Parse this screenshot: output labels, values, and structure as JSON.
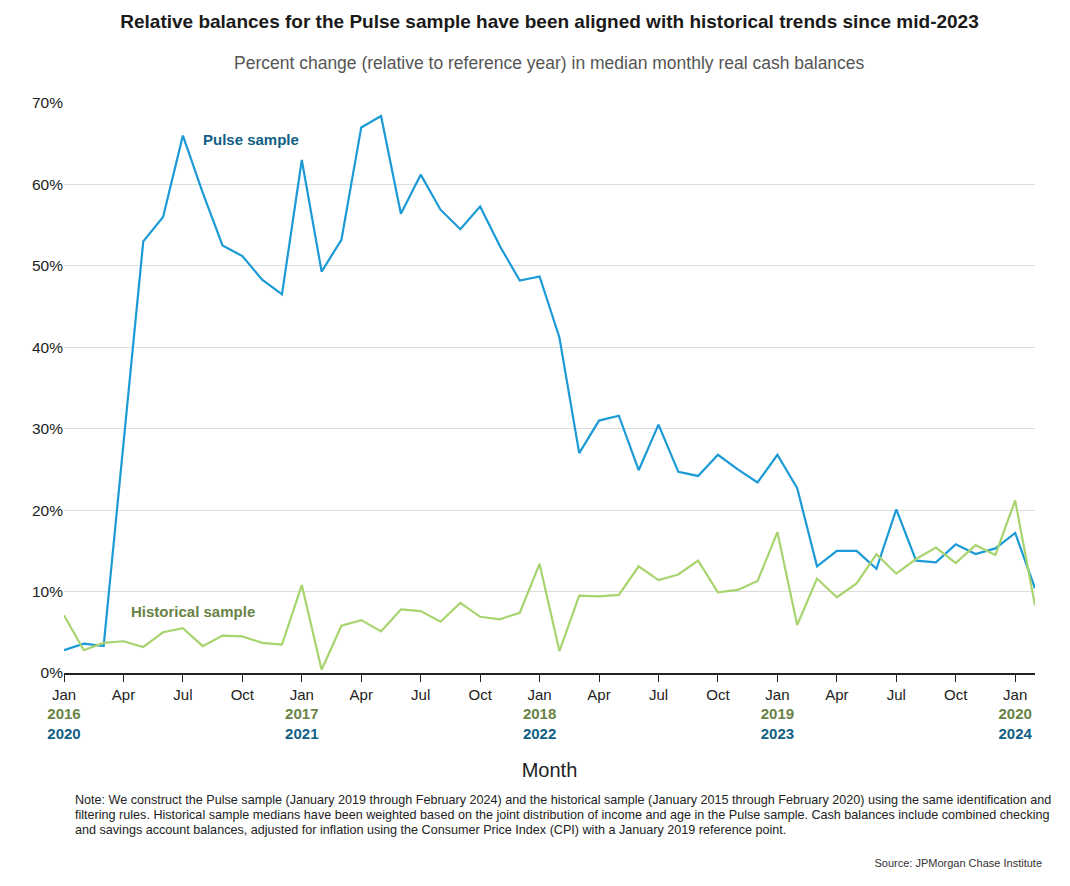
{
  "chart_data": {
    "type": "line",
    "title": "Relative balances for the Pulse sample have been aligned with historical trends since mid-2023",
    "subtitle": "Percent change (relative to reference year) in median monthly real cash balances",
    "x_label": "Month",
    "note": "Note: We construct the Pulse sample (January 2019 through February 2024) and the historical sample (January 2015 through February 2020) using the same identification and filtering rules. Historical sample medians have been weighted based on the joint distribution of income and age in the Pulse sample. Cash balances include combined checking and savings account balances, adjusted for inflation using the Consumer Price Index (CPI) with a January 2019 reference point.",
    "source": "Source: JPMorgan Chase Institute",
    "categories": [
      "Jan\n2016\n2020",
      null,
      null,
      "Apr",
      null,
      null,
      "Jul",
      null,
      null,
      "Oct",
      null,
      null,
      "Jan\n2017\n2021",
      null,
      null,
      "Apr",
      null,
      null,
      "Jul",
      null,
      null,
      "Oct",
      null,
      null,
      "Jan\n2018\n2022",
      null,
      null,
      "Apr",
      null,
      null,
      "Jul",
      null,
      null,
      "Oct",
      null,
      null,
      "Jan\n2019\n2023",
      null,
      null,
      "Apr",
      null,
      null,
      "Jul",
      null,
      null,
      "Oct",
      null,
      null,
      "Jan\n2020\n2024",
      null
    ],
    "series": [
      {
        "name": "Pulse sample",
        "color": "#1b9ad6",
        "values": [
          2.8,
          3.6,
          3.3,
          28,
          53,
          56,
          66,
          59,
          52.5,
          51.2,
          48.3,
          46.5,
          63,
          49.3,
          53.2,
          67,
          68.4,
          56.4,
          61.2,
          56.9,
          54.5,
          57.3,
          52.4,
          48.2,
          48.7,
          41.2,
          27,
          31,
          31.6,
          24.9,
          30.5,
          24.7,
          24.2,
          26.8,
          25,
          23.4,
          26.8,
          22.7,
          13.1,
          15,
          15,
          12.8,
          20.1,
          13.8,
          13.6,
          15.8,
          14.6,
          15.3,
          17.2,
          10.4
        ]
      },
      {
        "name": "Historical sample",
        "color": "#a8d46f",
        "values": [
          7.1,
          2.8,
          3.7,
          3.9,
          3.2,
          5.0,
          5.5,
          3.3,
          4.6,
          4.5,
          3.7,
          3.5,
          10.8,
          0.4,
          5.8,
          6.5,
          5.1,
          7.8,
          7.6,
          6.3,
          8.6,
          6.9,
          6.6,
          7.4,
          13.4,
          2.7,
          9.5,
          9.4,
          9.6,
          13.1,
          11.4,
          12.1,
          13.8,
          9.9,
          10.2,
          11.3,
          17.3,
          5.9,
          11.6,
          9.3,
          11.0,
          14.6,
          12.2,
          14.0,
          15.4,
          13.5,
          15.7,
          14.5,
          21.2,
          8.3
        ]
      }
    ],
    "ylim": [
      0,
      70
    ],
    "yticks": [
      {
        "value": 0,
        "label": "0%"
      },
      {
        "value": 10,
        "label": "10%"
      },
      {
        "value": 20,
        "label": "20%"
      },
      {
        "value": 30,
        "label": "30%"
      },
      {
        "value": 40,
        "label": "40%"
      },
      {
        "value": 50,
        "label": "50%"
      },
      {
        "value": 60,
        "label": "60%"
      },
      {
        "value": 70,
        "label": "70%"
      }
    ],
    "grid": true
  }
}
